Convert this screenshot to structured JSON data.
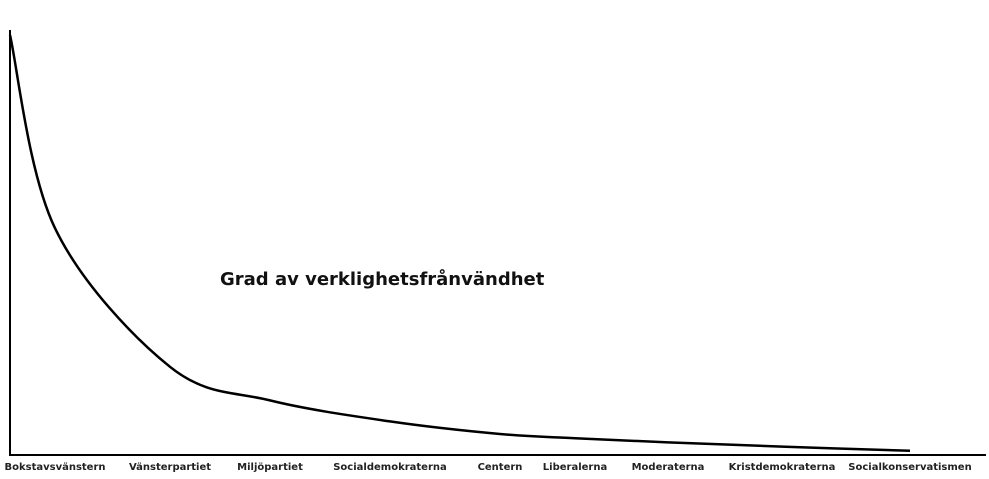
{
  "chart_data": {
    "type": "line",
    "annotation": "Grad av verklighetsfrånvändhet",
    "categories": [
      null,
      "Bokstavsvänstern",
      "Vänsterpartiet",
      "Miljöpartiet",
      "Socialdemokraterna",
      "Centern",
      "Liberalerna",
      "Moderaterna",
      "Kristdemokraterna",
      "Socialkonservatismen"
    ],
    "values": [
      100,
      54,
      21,
      13,
      8,
      5,
      4,
      3,
      2,
      1
    ],
    "color": "#000000",
    "ylim": [
      0,
      100
    ]
  }
}
